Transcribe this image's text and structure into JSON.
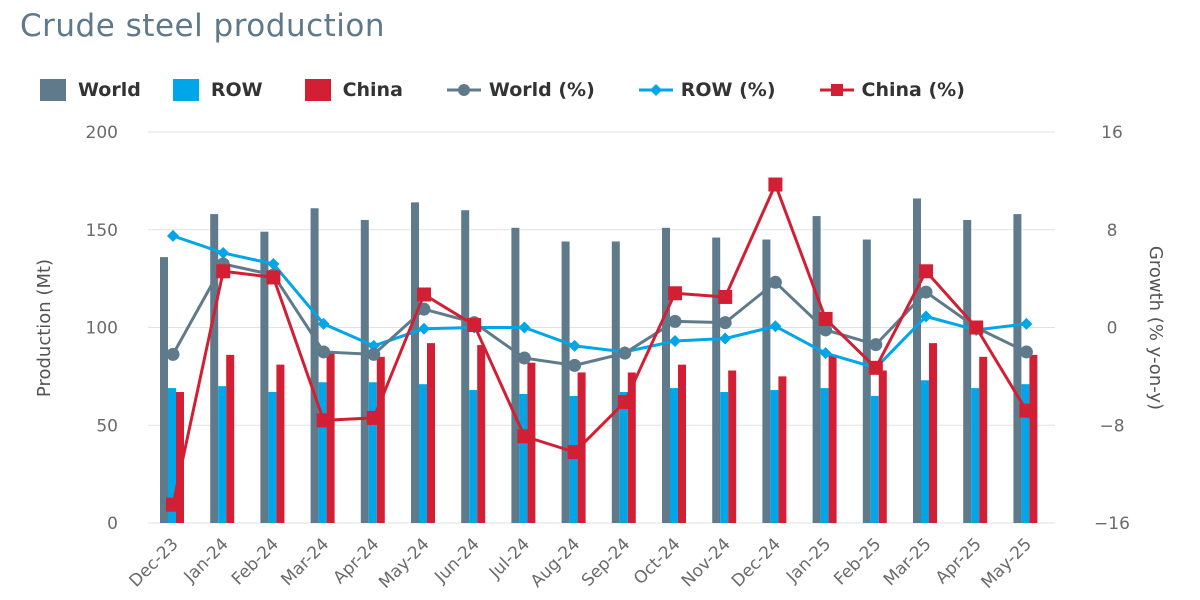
{
  "chart_data": {
    "type": "bar+line",
    "title": "Crude steel production",
    "categories": [
      "Dec-23",
      "Jan-24",
      "Feb-24",
      "Mar-24",
      "Apr-24",
      "May-24",
      "Jun-24",
      "Jul-24",
      "Aug-24",
      "Sep-24",
      "Oct-24",
      "Nov-24",
      "Dec-24",
      "Jan-25",
      "Feb-25",
      "Mar-25",
      "Apr-25",
      "May-25"
    ],
    "bar_series": [
      {
        "name": "World",
        "color": "#5f7b8b",
        "values": [
          136,
          158,
          149,
          161,
          155,
          164,
          160,
          151,
          144,
          144,
          151,
          146,
          145,
          157,
          145,
          166,
          155,
          158
        ]
      },
      {
        "name": "ROW",
        "color": "#00a6e8",
        "values": [
          69,
          70,
          67,
          72,
          72,
          71,
          68,
          66,
          65,
          67,
          69,
          67,
          68,
          69,
          65,
          73,
          69,
          71
        ]
      },
      {
        "name": "China",
        "color": "#d21f33",
        "values": [
          67,
          86,
          81,
          88,
          85,
          92,
          91,
          82,
          77,
          77,
          81,
          78,
          75,
          86,
          78,
          92,
          85,
          86
        ]
      }
    ],
    "line_series": [
      {
        "name": "World (%)",
        "color": "#5f7b8b",
        "marker": "circle",
        "values": [
          -2.2,
          5.2,
          4.3,
          -2.0,
          -2.2,
          1.5,
          0.4,
          -2.5,
          -3.1,
          -2.1,
          0.5,
          0.4,
          3.7,
          -0.2,
          -1.4,
          2.9,
          0.0,
          -2.0
        ]
      },
      {
        "name": "ROW (%)",
        "color": "#00a6e8",
        "marker": "diamond",
        "values": [
          7.5,
          6.1,
          5.2,
          0.3,
          -1.5,
          -0.1,
          0.0,
          0.0,
          -1.5,
          -2.0,
          -1.1,
          -0.9,
          0.1,
          -2.1,
          -3.3,
          0.9,
          -0.2,
          0.3
        ]
      },
      {
        "name": "China (%)",
        "color": "#d21f33",
        "marker": "square",
        "values": [
          -14.5,
          4.6,
          4.1,
          -7.6,
          -7.4,
          2.7,
          0.2,
          -8.9,
          -10.2,
          -6.1,
          2.8,
          2.5,
          11.7,
          0.7,
          -3.3,
          4.6,
          0.0,
          -6.8
        ]
      }
    ],
    "ylabel": "Production (Mt)",
    "y2label": "Growth (% y-on-y)",
    "ylim": [
      0,
      200
    ],
    "yticks": [
      "0",
      "50",
      "100",
      "150",
      "200"
    ],
    "y2lim": [
      -16,
      16
    ],
    "y2ticks": [
      "−16",
      "−8",
      "0",
      "8",
      "16"
    ],
    "grid": true,
    "legend_position": "top"
  }
}
